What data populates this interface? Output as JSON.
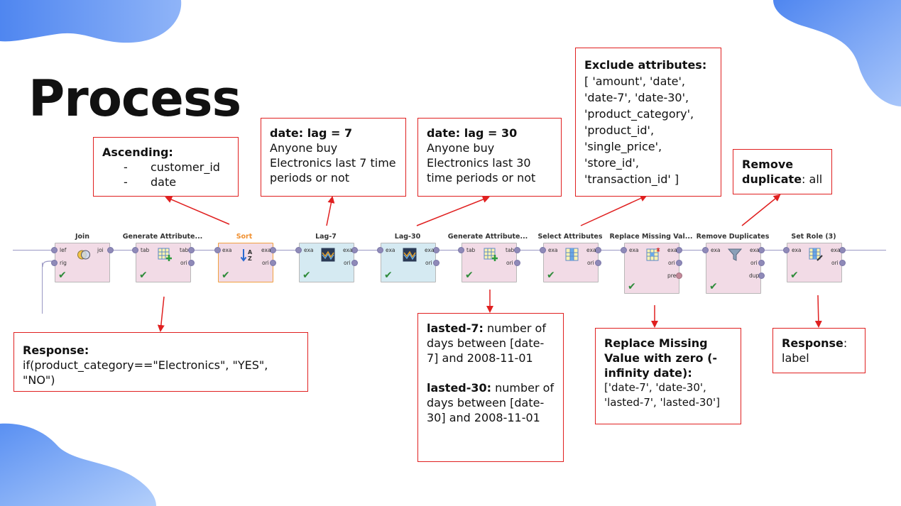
{
  "title": "Process",
  "operators": [
    {
      "name": "Join",
      "in": [
        "lef",
        "rig"
      ],
      "out": [
        "joi"
      ],
      "icon": "join-icon"
    },
    {
      "name": "Generate Attribute...",
      "in": [
        "tab"
      ],
      "out": [
        "tab",
        "ori"
      ],
      "icon": "generate-attributes-icon"
    },
    {
      "name": "Sort",
      "in": [
        "exa"
      ],
      "out": [
        "exa",
        "ori"
      ],
      "icon": "sort-icon"
    },
    {
      "name": "Lag-7",
      "in": [
        "exa"
      ],
      "out": [
        "exa",
        "ori"
      ],
      "icon": "lag-icon"
    },
    {
      "name": "Lag-30",
      "in": [
        "exa"
      ],
      "out": [
        "exa",
        "ori"
      ],
      "icon": "lag-icon"
    },
    {
      "name": "Generate Attribute...",
      "in": [
        "tab"
      ],
      "out": [
        "tab",
        "ori"
      ],
      "icon": "generate-attributes-icon"
    },
    {
      "name": "Select Attributes",
      "in": [
        "exa"
      ],
      "out": [
        "exa",
        "ori"
      ],
      "icon": "select-attributes-icon"
    },
    {
      "name": "Replace Missing Val...",
      "in": [
        "exa"
      ],
      "out": [
        "exa",
        "ori",
        "pre"
      ],
      "icon": "replace-missing-icon"
    },
    {
      "name": "Remove Duplicates",
      "in": [
        "exa"
      ],
      "out": [
        "exa",
        "ori",
        "dup"
      ],
      "icon": "filter-icon"
    },
    {
      "name": "Set Role (3)",
      "in": [
        "exa"
      ],
      "out": [
        "exa",
        "ori"
      ],
      "icon": "set-role-icon"
    }
  ],
  "notes": {
    "sort": {
      "heading": "Ascending:",
      "items": [
        "customer_id",
        "date"
      ],
      "dash": "-"
    },
    "lag7": {
      "heading": "date: lag = 7",
      "text": "Anyone buy Electronics last 7 time periods or not"
    },
    "lag30": {
      "heading": "date: lag = 30",
      "text": "Anyone buy Electronics last 30 time periods or not"
    },
    "select": {
      "heading": "Exclude attributes:",
      "text": "[ 'amount', 'date', 'date-7', 'date-30', 'product_category', 'product_id', 'single_price', 'store_id', 'transaction_id' ]"
    },
    "dedup": {
      "heading": "Remove duplicate",
      "text": ": all"
    },
    "gen1": {
      "heading": "Response:",
      "text": "if(product_category==\"Electronics\", \"YES\", \"NO\")"
    },
    "gen2": {
      "heading1": "lasted-7:",
      "text1": " number of days between [date-7] and 2008-11-01",
      "heading2": "lasted-30:",
      "text2": " number of days between [date-30] and 2008-11-01"
    },
    "replace": {
      "heading": "Replace Missing Value with zero (-infinity date):",
      "text": "['date-7', 'date-30', 'lasted-7', 'lasted-30']"
    },
    "setrole": {
      "heading": "Response",
      "colon": ":",
      "text": "label"
    }
  },
  "colors": {
    "note_border": "#e02020",
    "arrow": "#e02020",
    "blob": "#7aa7f0",
    "check": "#2e8b3a",
    "sort_highlight": "#f09030"
  }
}
